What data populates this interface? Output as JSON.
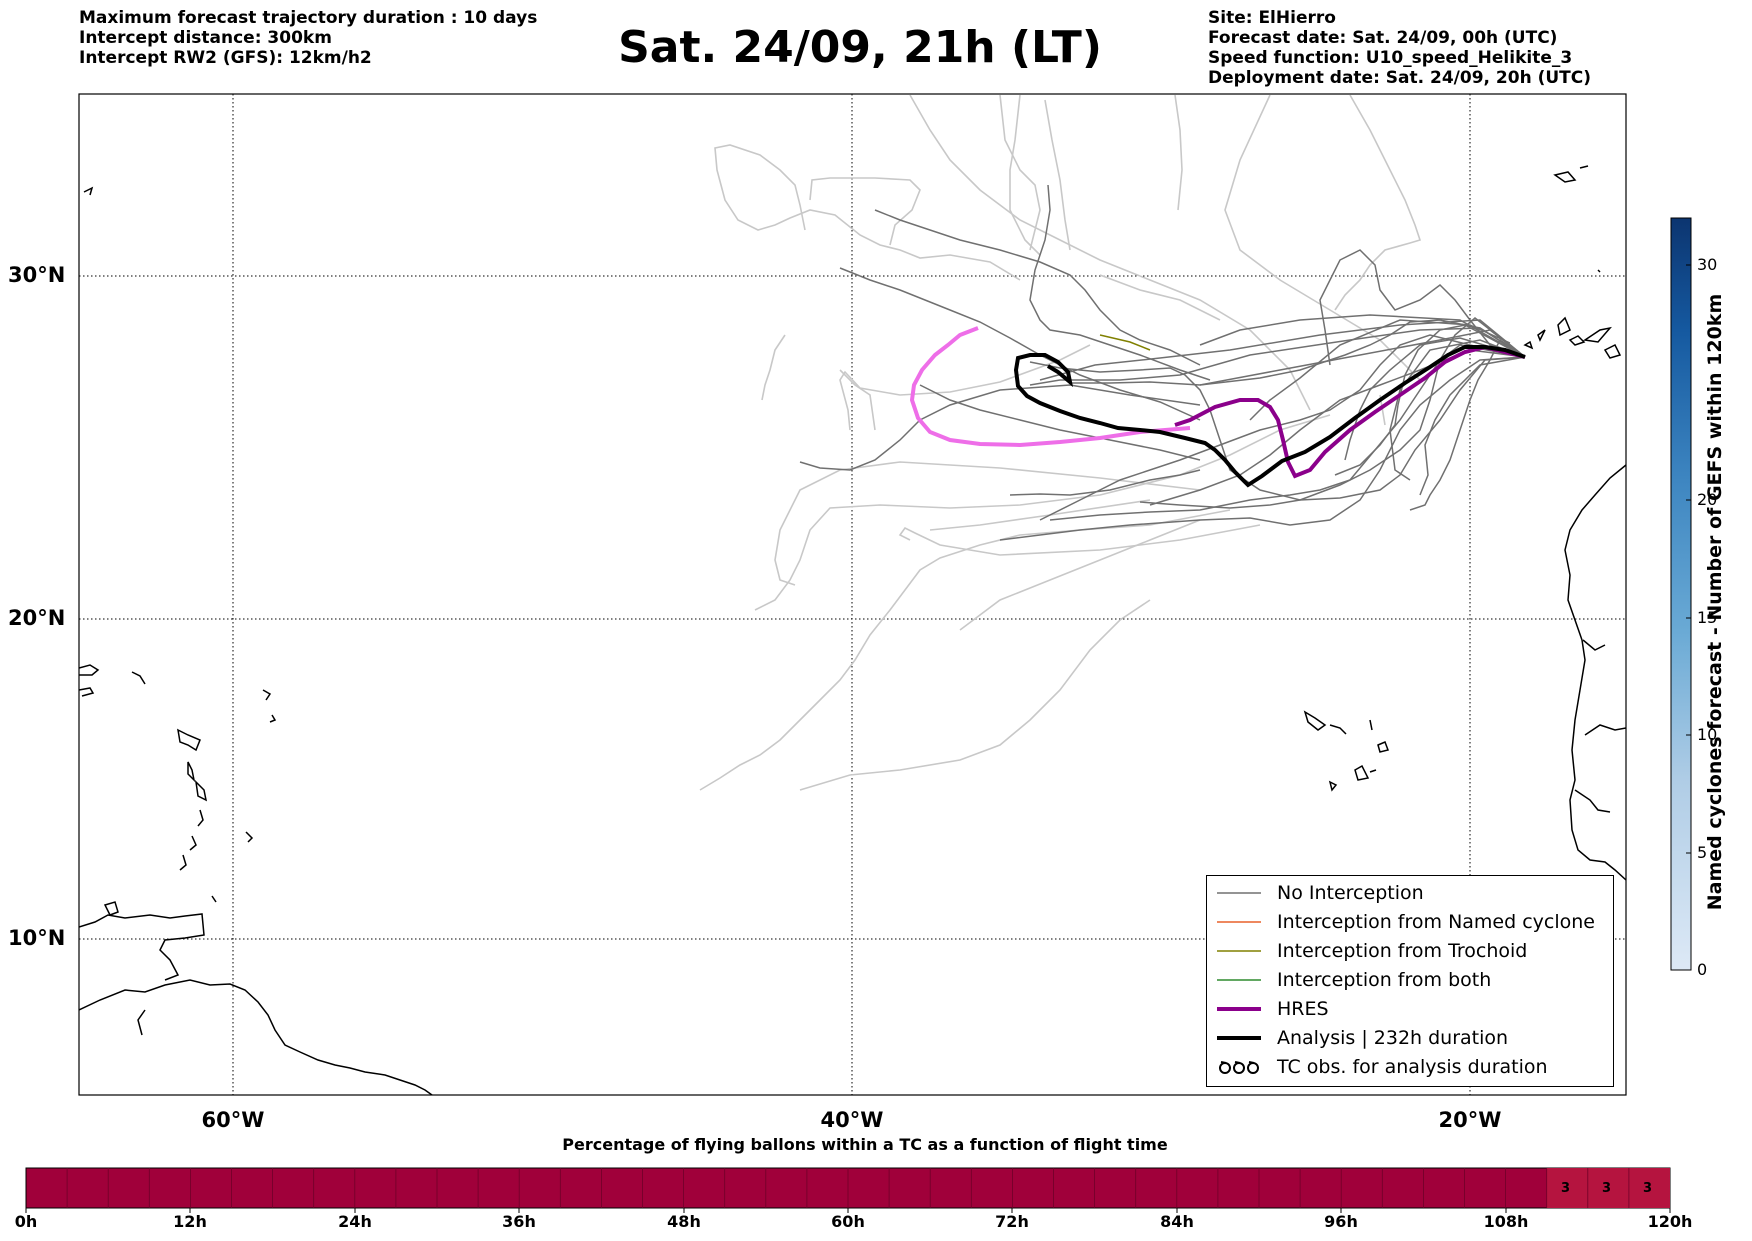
{
  "header_left": {
    "line1": "Maximum forecast trajectory duration : 10 days",
    "line2": "Intercept distance: 300km",
    "line3": "Intercept RW2 (GFS):  12km/h2"
  },
  "title": "Sat. 24/09, 21h (LT)",
  "header_right": {
    "site": "Site: ElHierro",
    "forecast_date": "Forecast date: Sat. 24/09, 00h (UTC)",
    "speed_function": "Speed function: U10_speed_Helikite_3",
    "deployment_date": "Deployment date: Sat. 24/09, 20h (UTC)"
  },
  "map": {
    "lon_range": [
      -65,
      -15
    ],
    "lat_range": [
      5.4,
      34.7
    ],
    "lat_labels": [
      "30°N",
      "20°N",
      "10°N"
    ],
    "lon_labels": [
      "60°W",
      "40°W",
      "20°W"
    ],
    "site": {
      "name": "ElHierro",
      "lon": -18.0,
      "lat": 27.7
    },
    "colors": {
      "no_interception": "#707070",
      "faded": "#c8c8c8",
      "named_cyclone": "#e8602a",
      "trochoid": "#808000",
      "both": "#2e8b2e",
      "hres": "#8b008b",
      "hres_forecast": "#ee6ee8",
      "analysis": "#000000"
    }
  },
  "legend": {
    "items": [
      {
        "label": "No Interception",
        "style": "no_interception"
      },
      {
        "label": "Interception from Named cyclone",
        "style": "named_cyclone"
      },
      {
        "label": "Interception from Trochoid",
        "style": "trochoid"
      },
      {
        "label": "Interception from both",
        "style": "both"
      },
      {
        "label": "HRES",
        "style": "hres"
      },
      {
        "label": "Analysis | 232h duration",
        "style": "analysis"
      },
      {
        "label": "TC obs. for analysis duration",
        "style": "tc_obs"
      }
    ]
  },
  "colorbar": {
    "title": "Named cyclones forecast - Number of GEFS within 120km",
    "ticks": [
      "0",
      "5",
      "10",
      "15",
      "20",
      "30"
    ],
    "tick_values": [
      0,
      5,
      10,
      15,
      20,
      30
    ],
    "max": 32
  },
  "bottom_bar": {
    "title": "Percentage of flying ballons within a TC as a function of flight time",
    "ticks": [
      "0h",
      "12h",
      "24h",
      "36h",
      "48h",
      "60h",
      "72h",
      "84h",
      "96h",
      "108h",
      "120h"
    ],
    "cell_values": [
      "3",
      "3",
      "3"
    ],
    "base_color": "#a0003a",
    "highlight_color": "#b5143f"
  }
}
